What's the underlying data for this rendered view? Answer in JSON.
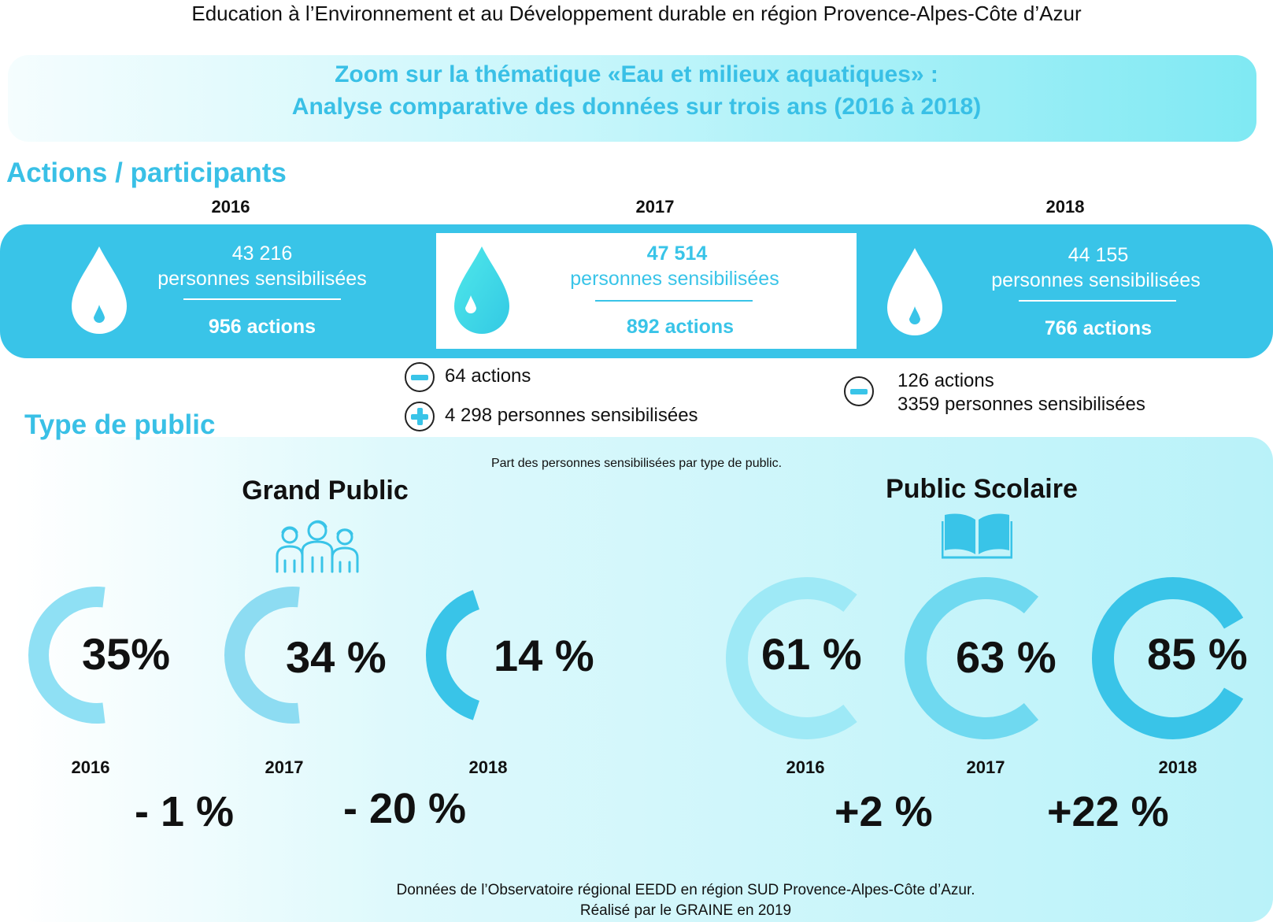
{
  "header": {
    "title": "Education à l’Environnement et au Développement durable en région Provence-Alpes-Côte d’Azur"
  },
  "banner": {
    "line1": "Zoom sur la thématique «Eau et milieux aquatiques» :",
    "line2": "Analyse comparative des données sur trois ans (2016 à 2018)"
  },
  "actions": {
    "section_title": "Actions / participants",
    "years": [
      {
        "year": "2016",
        "people": "43 216",
        "people_label": "personnes sensibilisées",
        "actions": "956 actions"
      },
      {
        "year": "2017",
        "people": "47 514",
        "people_label": "personnes sensibilisées",
        "actions": "892 actions"
      },
      {
        "year": "2018",
        "people": "44 155",
        "people_label": "personnes sensibilisées",
        "actions": "766 actions"
      }
    ],
    "diff_2017": {
      "actions": "64 actions",
      "people": "4 298 personnes sensibilisées"
    },
    "diff_2018": {
      "actions": "126 actions",
      "people": "3359 personnes sensibilisées"
    }
  },
  "public": {
    "section_title": "Type de public",
    "subtitle": "Part des personnes sensibilisées par type de public.",
    "grand_public": {
      "title": "Grand Public",
      "items": [
        {
          "year": "2016",
          "pct_label": "35%",
          "value": 35
        },
        {
          "year": "2017",
          "pct_label": "34 %",
          "value": 34
        },
        {
          "year": "2018",
          "pct_label": "14 %",
          "value": 14
        }
      ],
      "changes": [
        "- 1 %",
        "- 20 %"
      ]
    },
    "public_scolaire": {
      "title": "Public Scolaire",
      "items": [
        {
          "year": "2016",
          "pct_label": "61 %",
          "value": 61
        },
        {
          "year": "2017",
          "pct_label": "63 %",
          "value": 63
        },
        {
          "year": "2018",
          "pct_label": "85 %",
          "value": 85
        }
      ],
      "changes": [
        "+2 %",
        "+22 %"
      ]
    }
  },
  "footer": {
    "line1": "Données de l’Observatoire régional EEDD en région SUD Provence-Alpes-Côte d’Azur.",
    "line2": "Réalisé par le GRAINE en 2019"
  },
  "colors": {
    "accent": "#39c4e8",
    "accent_light": "#8fe4f3",
    "banner_text": "#39c0e6",
    "drop_light": "#4fdde9"
  },
  "icons": [
    "water-drop-icon",
    "minus-icon",
    "plus-icon",
    "people-group-icon",
    "open-book-icon"
  ]
}
